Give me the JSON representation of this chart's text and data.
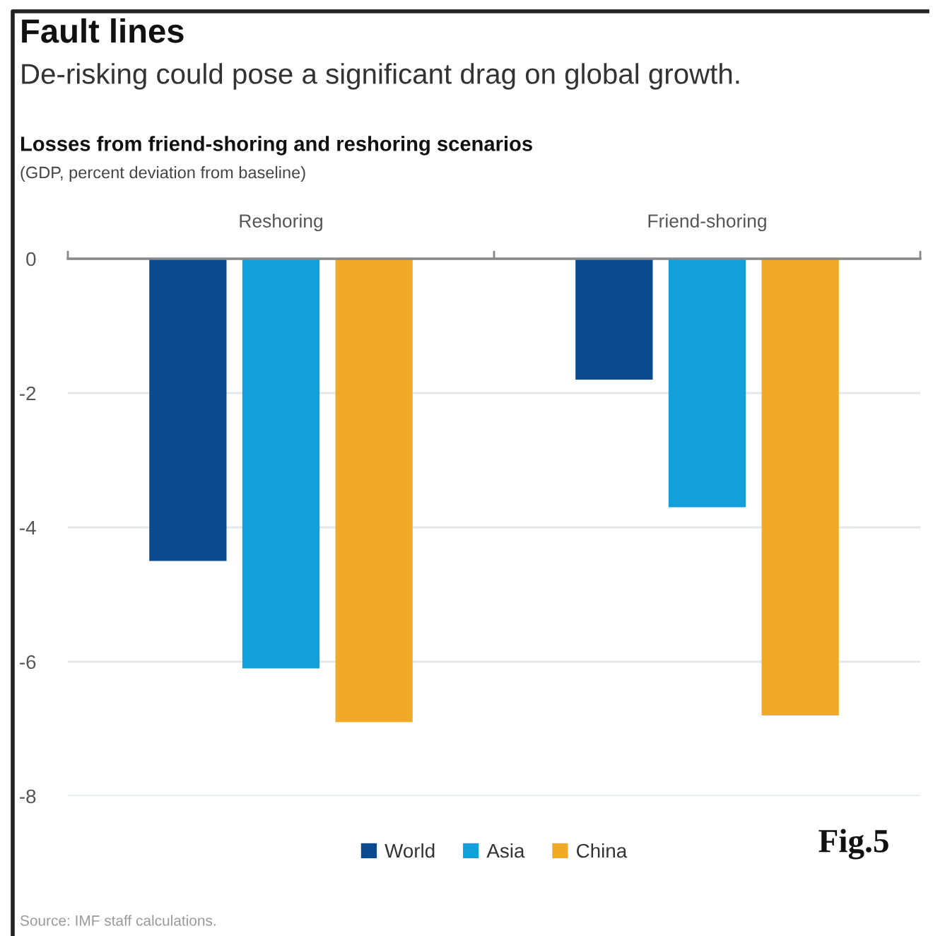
{
  "chart_data": {
    "type": "bar",
    "title": "Fault lines",
    "subtitle": "De-risking could pose a significant drag on global growth.",
    "ylabel": "(GDP, percent deviation from baseline)",
    "annotations": [
      "Losses from friend-shoring and reshoring scenarios",
      "Source: IMF staff calculations.",
      "Fig.5"
    ],
    "categories": [
      "Reshoring",
      "Friend-shoring"
    ],
    "series": [
      {
        "name": "World",
        "color": "#0c4a8f",
        "values": [
          -4.5,
          -1.8
        ]
      },
      {
        "name": "Asia",
        "color": "#139fd9",
        "values": [
          -6.1,
          -3.7
        ]
      },
      {
        "name": "China",
        "color": "#f0aa28",
        "values": [
          -6.9,
          -6.8
        ]
      }
    ],
    "ylim": [
      -8,
      0
    ],
    "yticks": [
      0,
      -2,
      -4,
      -6,
      -8
    ],
    "grid": "y",
    "legend": "bottom"
  }
}
